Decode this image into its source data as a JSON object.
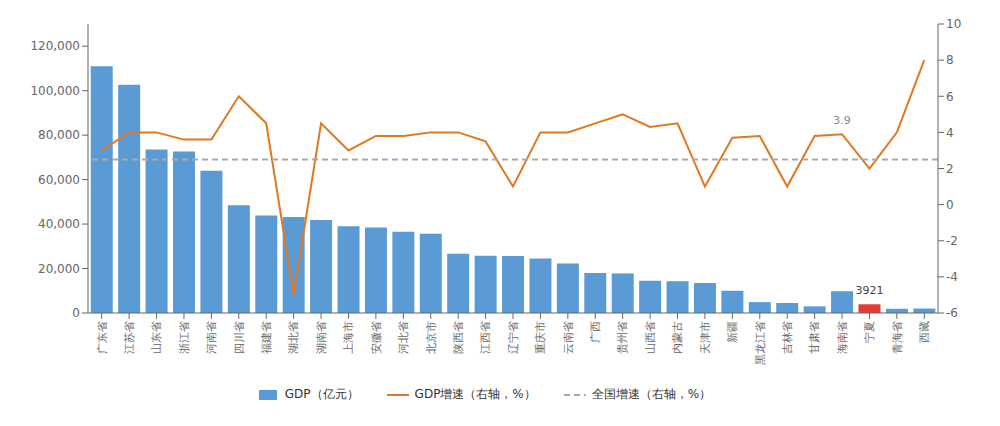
{
  "chart_data": {
    "type": "bar",
    "categories": [
      "广东省",
      "江苏省",
      "山东省",
      "浙江省",
      "河南省",
      "四川省",
      "福建省",
      "湖北省",
      "湖南省",
      "上海市",
      "安徽省",
      "河北省",
      "北京市",
      "陕西省",
      "江西省",
      "辽宁省",
      "重庆市",
      "云南省",
      "广西",
      "贵州省",
      "山西省",
      "内蒙古",
      "天津市",
      "新疆",
      "黑龙江省",
      "吉林省",
      "甘肃省",
      "海南省",
      "宁夏",
      "青海省",
      "西藏"
    ],
    "series": [
      {
        "name": "GDP（亿元）",
        "type": "bar",
        "color": "#5B9BD5",
        "colors": [
          "#5B9BD5",
          "#5B9BD5",
          "#5B9BD5",
          "#5B9BD5",
          "#5B9BD5",
          "#5B9BD5",
          "#5B9BD5",
          "#5B9BD5",
          "#5B9BD5",
          "#5B9BD5",
          "#5B9BD5",
          "#5B9BD5",
          "#5B9BD5",
          "#5B9BD5",
          "#5B9BD5",
          "#5B9BD5",
          "#5B9BD5",
          "#5B9BD5",
          "#5B9BD5",
          "#5B9BD5",
          "#5B9BD5",
          "#5B9BD5",
          "#5B9BD5",
          "#5B9BD5",
          "#5B9BD5",
          "#5B9BD5",
          "#5B9BD5",
          "#5B9BD5",
          "#E53935",
          "#5B9BD5",
          "#5B9BD5"
        ],
        "values": [
          111000,
          102700,
          73500,
          72700,
          64000,
          48500,
          43900,
          43200,
          41800,
          39000,
          38500,
          36600,
          35600,
          26600,
          25800,
          25600,
          24500,
          22300,
          18000,
          17800,
          14500,
          14300,
          13500,
          10000,
          4900,
          4500,
          3000,
          9800,
          3921,
          1900,
          2000
        ]
      },
      {
        "name": "GDP增速（右轴，%）",
        "type": "line",
        "color": "#E07820",
        "axis": "y2",
        "values": [
          3.0,
          4.0,
          4.0,
          3.6,
          3.6,
          6.0,
          4.5,
          -5.0,
          4.5,
          3.0,
          3.8,
          3.8,
          4.0,
          4.0,
          3.5,
          1.0,
          4.0,
          4.0,
          4.5,
          5.0,
          4.3,
          4.5,
          1.0,
          3.7,
          3.8,
          1.0,
          3.8,
          3.9,
          2.0,
          4.0,
          8.0
        ]
      },
      {
        "name": "全国增速（右轴，%）",
        "type": "hline",
        "color": "#AAAAAA",
        "line_style": "dashed",
        "axis": "y2",
        "value": 2.5
      }
    ],
    "ylim": [
      0,
      130000
    ],
    "yticks": [
      0,
      {
        "value": 20000,
        "label": "20,000"
      },
      {
        "value": 40000,
        "label": "40,000"
      },
      {
        "value": 60000,
        "label": "60,000"
      },
      {
        "value": 80000,
        "label": "80,000"
      },
      {
        "value": 100000,
        "label": "100,000"
      },
      {
        "value": 120000,
        "label": "120,000"
      }
    ],
    "y2lim": [
      -6,
      10
    ],
    "y2ticks": [
      -6,
      -4,
      -2,
      0,
      2,
      4,
      6,
      8,
      10
    ],
    "annotations": [
      {
        "text": "3921",
        "category": "宁夏",
        "series": "GDP（亿元）"
      },
      {
        "text": "3.9",
        "category": "海南省",
        "series": "GDP增速（右轴，%）"
      }
    ],
    "grid": false
  }
}
